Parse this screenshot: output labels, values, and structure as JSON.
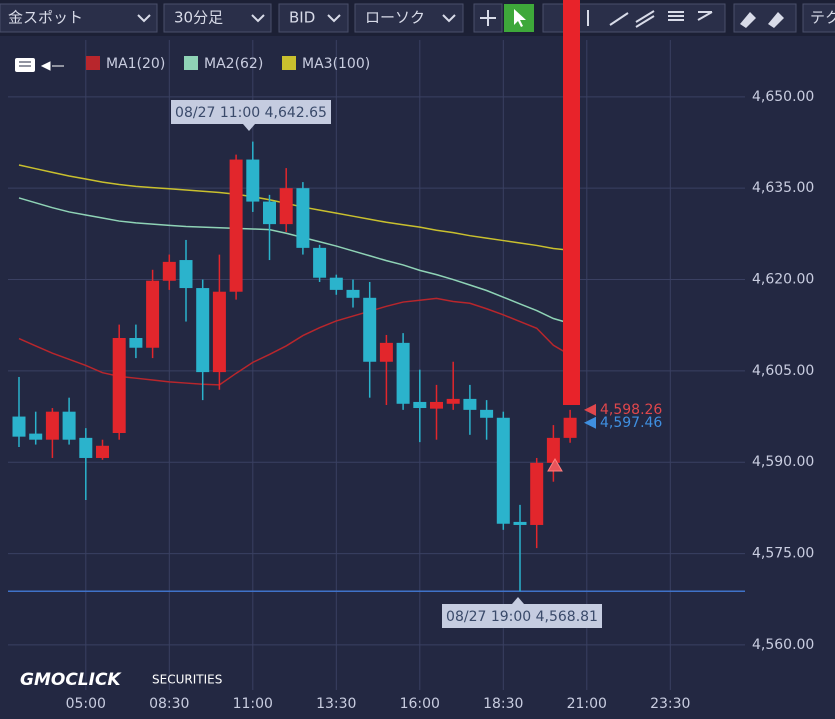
{
  "toolbar": [
    "金スポット",
    "30分足",
    "BID",
    "ローソク",
    "テク"
  ],
  "watermark": {
    "brand": "GMOCLICK",
    "sub": "SECURITIES"
  },
  "chart_data": {
    "type": "candlestick",
    "categories": [
      null,
      null,
      null,
      null,
      "05:00",
      null,
      null,
      null,
      null,
      "08:30",
      null,
      null,
      null,
      null,
      "11:00",
      null,
      null,
      null,
      null,
      "13:30",
      null,
      null,
      null,
      null,
      "16:00",
      null,
      null,
      null,
      null,
      "18:30",
      null,
      null,
      null,
      null,
      "21:00",
      null,
      null,
      null,
      null,
      "23:30",
      null,
      null,
      null,
      null
    ],
    "candles": {
      "up_color": "#e2262c",
      "down_color": "#2bb3cc",
      "open": [
        4597.5,
        4594.7,
        4593.7,
        4598.3,
        4594.0,
        4590.7,
        4594.8,
        4610.4,
        4608.8,
        4619.8,
        4623.2,
        4618.6,
        4604.8,
        4618.0,
        4639.7,
        4632.8,
        4629.1,
        4635.0,
        4625.2,
        4620.3,
        4618.3,
        4617.0,
        4606.5,
        4609.6,
        4599.9,
        4598.8,
        4599.6,
        4600.4,
        4598.6,
        4597.3,
        4580.2,
        4579.7,
        4589.9,
        4594.0,
        null,
        null,
        null,
        null,
        null,
        null,
        null,
        null,
        null,
        null
      ],
      "high": [
        4604.0,
        4598.3,
        4598.9,
        4600.6,
        4595.6,
        4593.7,
        4612.6,
        4612.6,
        4621.6,
        4624.1,
        4626.5,
        4620.0,
        4624.1,
        4640.5,
        4642.65,
        4633.9,
        4638.3,
        4636.0,
        4625.7,
        4620.8,
        4620.0,
        4619.6,
        4610.9,
        4611.2,
        4605.2,
        4602.7,
        4606.5,
        4602.7,
        4600.2,
        4598.3,
        4583.0,
        4590.7,
        4596.1,
        4598.6,
        null,
        null,
        null,
        null,
        null,
        null,
        null,
        null,
        null,
        null
      ],
      "low": [
        4592.5,
        4592.9,
        4590.7,
        4592.9,
        4583.8,
        4590.4,
        4593.7,
        4607.1,
        4607.1,
        4618.3,
        4613.1,
        4600.2,
        4601.9,
        4616.7,
        4631.1,
        4623.2,
        4627.8,
        4624.1,
        4619.6,
        4617.5,
        4615.4,
        4600.6,
        4599.4,
        4598.6,
        4593.3,
        4593.7,
        4598.6,
        4594.5,
        4593.7,
        4578.9,
        4568.81,
        4575.9,
        4586.8,
        4593.2,
        null,
        null,
        null,
        null,
        null,
        null,
        null,
        null,
        null,
        null
      ],
      "close": [
        4594.2,
        4593.7,
        4598.3,
        4593.7,
        4590.7,
        4592.7,
        4610.4,
        4608.8,
        4619.8,
        4622.9,
        4618.6,
        4604.8,
        4618.0,
        4639.7,
        4632.8,
        4629.1,
        4635.0,
        4625.2,
        4620.3,
        4618.3,
        4617.0,
        4606.5,
        4609.6,
        4599.6,
        4598.9,
        4599.9,
        4600.4,
        4598.6,
        4597.3,
        4579.9,
        4579.7,
        4589.9,
        4594.0,
        4597.3,
        null,
        null,
        null,
        null,
        null,
        null,
        null,
        null,
        null,
        null
      ]
    },
    "series": [
      {
        "name": "MA1(20)",
        "color": "#b8262c",
        "values": [
          4610.3,
          4609.1,
          4607.9,
          4606.9,
          4605.9,
          4604.7,
          4604.1,
          4603.8,
          4603.5,
          4603.2,
          4603.0,
          4602.8,
          4602.7,
          4604.6,
          4606.4,
          4607.7,
          4609.1,
          4610.8,
          4612.1,
          4613.2,
          4614.0,
          4614.8,
          4615.6,
          4616.3,
          4616.6,
          4616.9,
          4616.4,
          4616.1,
          4615.2,
          4614.2,
          4613.1,
          4612.0,
          4609.2,
          4607.6,
          null,
          null,
          null,
          null,
          null,
          null,
          null,
          null,
          null,
          null
        ]
      },
      {
        "name": "MA2(62)",
        "color": "#8fd3b6",
        "values": [
          4633.4,
          4632.6,
          4631.8,
          4631.1,
          4630.6,
          4630.1,
          4629.6,
          4629.3,
          4629.1,
          4628.9,
          4628.7,
          4628.6,
          4628.5,
          4628.4,
          4628.3,
          4628.2,
          4627.6,
          4626.9,
          4626.2,
          4625.5,
          4624.7,
          4623.9,
          4623.1,
          4622.4,
          4621.5,
          4620.8,
          4620.0,
          4619.1,
          4618.2,
          4617.1,
          4616.0,
          4614.9,
          4613.6,
          4612.8,
          null,
          null,
          null,
          null,
          null,
          null,
          null,
          null,
          null,
          null
        ]
      },
      {
        "name": "MA3(100)",
        "color": "#c9c02e",
        "values": [
          4638.8,
          4638.2,
          4637.6,
          4637.0,
          4636.5,
          4636.0,
          4635.6,
          4635.3,
          4635.1,
          4634.9,
          4634.7,
          4634.5,
          4634.3,
          4634.0,
          4633.6,
          4633.1,
          4632.5,
          4631.9,
          4631.4,
          4630.9,
          4630.4,
          4629.9,
          4629.4,
          4629.0,
          4628.6,
          4628.1,
          4627.7,
          4627.2,
          4626.8,
          4626.4,
          4626.0,
          4625.6,
          4625.1,
          4624.8,
          null,
          null,
          null,
          null,
          null,
          null,
          null,
          null,
          null,
          null
        ]
      }
    ],
    "ylim": [
      4552.6,
      4665.9
    ],
    "yticks": [
      {
        "value": 4560,
        "label": "4,560.00"
      },
      {
        "value": 4575,
        "label": "4,575.00"
      },
      {
        "value": 4590,
        "label": "4,590.00"
      },
      {
        "value": 4605,
        "label": "4,605.00"
      },
      {
        "value": 4620,
        "label": "4,620.00"
      },
      {
        "value": 4635,
        "label": "4,635.00"
      },
      {
        "value": 4650,
        "label": "4,650.00"
      }
    ],
    "grid": true,
    "annotations": [
      "08/27 11:00 4,642.65",
      "08/27 19:00 4,568.81"
    ],
    "low_line": {
      "value": 4568.81,
      "color": "#3f72c8"
    },
    "price_labels": [
      {
        "value": 4598.26,
        "label": "4,598.26",
        "color": "#e0474c"
      },
      {
        "value": 4597.46,
        "label": "4,597.46",
        "color": "#3f8fe0"
      }
    ]
  }
}
